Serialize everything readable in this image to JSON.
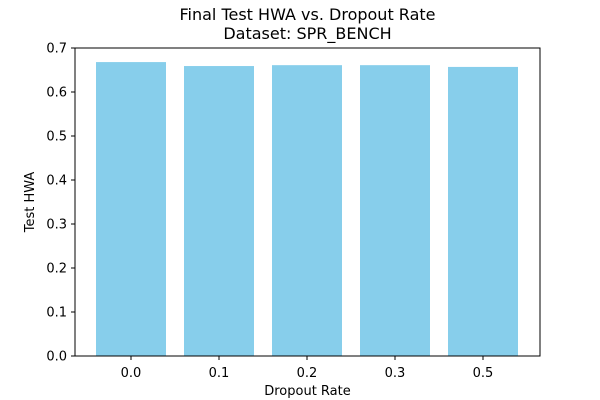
{
  "chart_data": {
    "type": "bar",
    "title": "Final Test HWA vs. Dropout Rate",
    "subtitle": "Dataset: SPR_BENCH",
    "xlabel": "Dropout Rate",
    "ylabel": "Test HWA",
    "categories": [
      "0.0",
      "0.1",
      "0.2",
      "0.3",
      "0.5"
    ],
    "values": [
      0.668,
      0.659,
      0.661,
      0.661,
      0.657
    ],
    "ylim": [
      0,
      0.7
    ],
    "yticks": [
      "0.0",
      "0.1",
      "0.2",
      "0.3",
      "0.4",
      "0.5",
      "0.6",
      "0.7"
    ],
    "bar_color": "#87CEEB",
    "grid": false,
    "legend": "none"
  }
}
